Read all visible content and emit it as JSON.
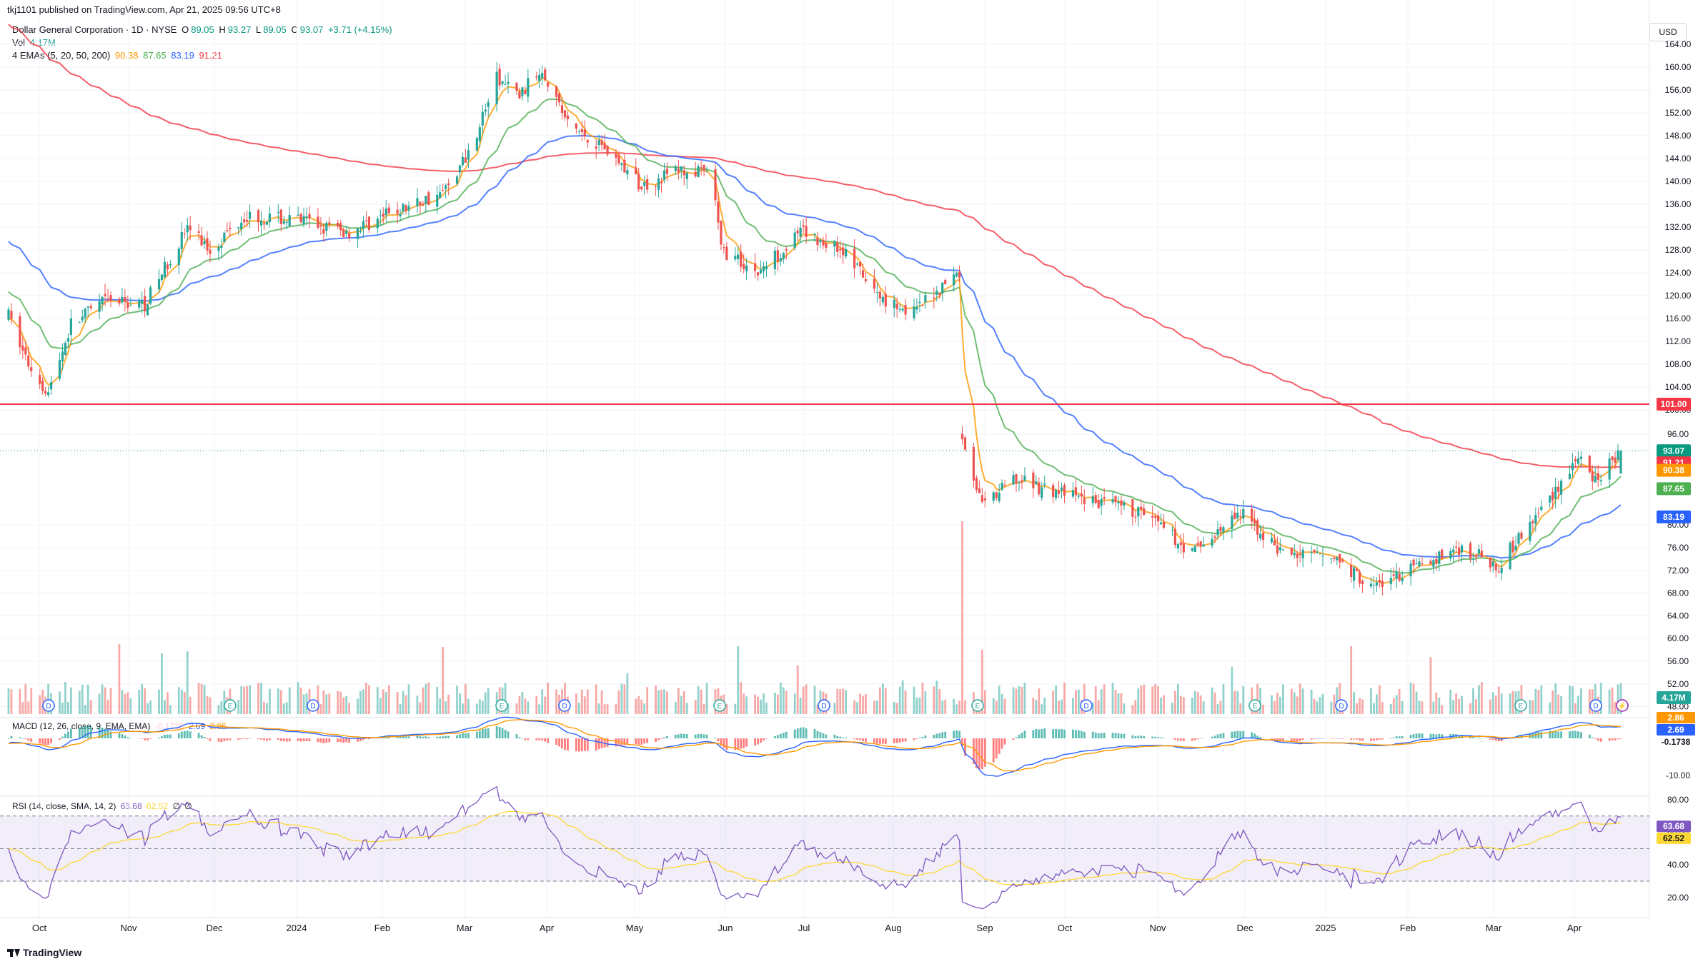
{
  "header": {
    "publisher": "tkj1101 published on TradingView.com, Apr 21, 2025 09:56 UTC+8"
  },
  "legend": {
    "symbol": "Dollar General Corporation · 1D · NYSE",
    "o_label": "O",
    "o": "89.05",
    "h_label": "H",
    "h": "93.27",
    "l_label": "L",
    "l": "89.05",
    "c_label": "C",
    "c": "93.07",
    "change": "+3.71 (+4.15%)",
    "vol_label": "Vol",
    "vol": "4.17M",
    "ema_label": "4 EMAs (5, 20, 50, 200)",
    "ema5": "90.38",
    "ema20": "87.65",
    "ema50": "83.19",
    "ema200": "91.21",
    "macd_label": "MACD (12, 26, close, 9, EMA, EMA)",
    "macd_hist": "-0.1738",
    "macd_line": "2.69",
    "macd_signal": "2.86",
    "rsi_label": "RSI (14, close, SMA, 14, 2)",
    "rsi_value": "63.68",
    "rsi_ma": "62.52",
    "rsi_extra1": "∅",
    "rsi_extra2": "∅"
  },
  "currency": "USD",
  "branding": "TradingView",
  "colors": {
    "up": "#26a69a",
    "down": "#ef5350",
    "ema5": "#ff9800",
    "ema20": "#4caf50",
    "ema50": "#2962ff",
    "ema200": "#f23645",
    "level": "#f23645",
    "rsi": "#7e57c2",
    "rsi_ma": "#fdd835"
  },
  "price_axis": [
    "164.00",
    "160.00",
    "156.00",
    "152.00",
    "148.00",
    "144.00",
    "140.00",
    "136.00",
    "132.00",
    "128.00",
    "124.00",
    "120.00",
    "116.00",
    "112.00",
    "108.00",
    "104.00",
    "100.00",
    "96.00",
    "80.00",
    "76.00",
    "72.00",
    "68.00",
    "64.00",
    "60.00",
    "56.00",
    "52.00",
    "48.00"
  ],
  "price_badges": [
    {
      "value": "101.00",
      "color": "#f23645"
    },
    {
      "value": "93.07",
      "color": "#089981"
    },
    {
      "value": "91.21",
      "color": "#f23645"
    },
    {
      "value": "90.38",
      "color": "#ff9800"
    },
    {
      "value": "87.65",
      "color": "#4caf50"
    },
    {
      "value": "83.19",
      "color": "#2962ff"
    },
    {
      "value": "4.17M",
      "color": "#26a69a"
    }
  ],
  "macd_axis": [
    "-10.00"
  ],
  "macd_badges": [
    {
      "value": "2.86",
      "color": "#ff9800"
    },
    {
      "value": "2.69",
      "color": "#2962ff"
    },
    {
      "value": "-0.1738",
      "color": "#ffffff"
    }
  ],
  "rsi_axis": [
    "80.00",
    "60.00",
    "40.00",
    "20.00"
  ],
  "rsi_badges": [
    {
      "value": "63.68",
      "color": "#7e57c2"
    },
    {
      "value": "62.52",
      "color": "#fdd835"
    }
  ],
  "events": [
    "D",
    "E",
    "D",
    "E",
    "D",
    "E",
    "D",
    "E",
    "D",
    "E",
    "D",
    "E",
    "D",
    "E",
    "D",
    "⚡"
  ],
  "chart_data": {
    "type": "candlestick",
    "x_ticks": [
      "Oct",
      "Nov",
      "Dec",
      "2024",
      "Feb",
      "Mar",
      "Apr",
      "May",
      "Jun",
      "Jul",
      "Aug",
      "Sep",
      "Oct",
      "Nov",
      "Dec",
      "2025",
      "Feb",
      "Mar",
      "Apr"
    ],
    "anchors_price": [
      [
        "2023-09-28",
        116.5
      ],
      [
        "2023-10-05",
        108
      ],
      [
        "2023-10-12",
        103
      ],
      [
        "2023-10-20",
        115
      ],
      [
        "2023-11-01",
        119
      ],
      [
        "2023-11-15",
        118.5
      ],
      [
        "2023-11-30",
        132
      ],
      [
        "2023-12-08",
        128
      ],
      [
        "2023-12-20",
        134
      ],
      [
        "2024-01-10",
        133
      ],
      [
        "2024-01-25",
        131
      ],
      [
        "2024-02-08",
        134
      ],
      [
        "2024-02-28",
        138
      ],
      [
        "2024-03-08",
        145
      ],
      [
        "2024-03-18",
        158
      ],
      [
        "2024-03-26",
        155
      ],
      [
        "2024-04-03",
        160
      ],
      [
        "2024-04-12",
        150
      ],
      [
        "2024-04-25",
        146
      ],
      [
        "2024-05-08",
        139
      ],
      [
        "2024-05-20",
        142
      ],
      [
        "2024-06-02",
        141
      ],
      [
        "2024-06-05",
        128
      ],
      [
        "2024-06-18",
        124
      ],
      [
        "2024-07-03",
        131
      ],
      [
        "2024-07-18",
        128
      ],
      [
        "2024-07-30",
        120
      ],
      [
        "2024-08-12",
        117
      ],
      [
        "2024-08-20",
        121
      ],
      [
        "2024-08-28",
        124
      ],
      [
        "2024-08-29",
        96
      ],
      [
        "2024-09-05",
        83
      ],
      [
        "2024-09-16",
        88
      ],
      [
        "2024-09-30",
        86
      ],
      [
        "2024-10-15",
        84
      ],
      [
        "2024-11-01",
        82
      ],
      [
        "2024-11-18",
        75
      ],
      [
        "2024-12-05",
        82
      ],
      [
        "2024-12-20",
        75
      ],
      [
        "2025-01-08",
        74
      ],
      [
        "2025-01-20",
        69
      ],
      [
        "2025-02-03",
        72
      ],
      [
        "2025-02-20",
        76
      ],
      [
        "2025-03-06",
        73
      ],
      [
        "2025-03-20",
        82
      ],
      [
        "2025-04-03",
        92
      ],
      [
        "2025-04-08",
        87
      ],
      [
        "2025-04-18",
        93.07
      ]
    ],
    "ema_values_last": {
      "ema5": 90.38,
      "ema20": 87.65,
      "ema50": 83.19,
      "ema200": 91.21
    },
    "horizontal_level": 101.0,
    "last_close": 93.07,
    "volume_last": "4.17M",
    "macd_last": {
      "macd": 2.69,
      "signal": 2.86,
      "hist": -0.1738
    },
    "rsi_last": {
      "rsi": 63.68,
      "ma": 62.52
    },
    "rsi_bands": [
      70,
      50,
      30
    ]
  }
}
